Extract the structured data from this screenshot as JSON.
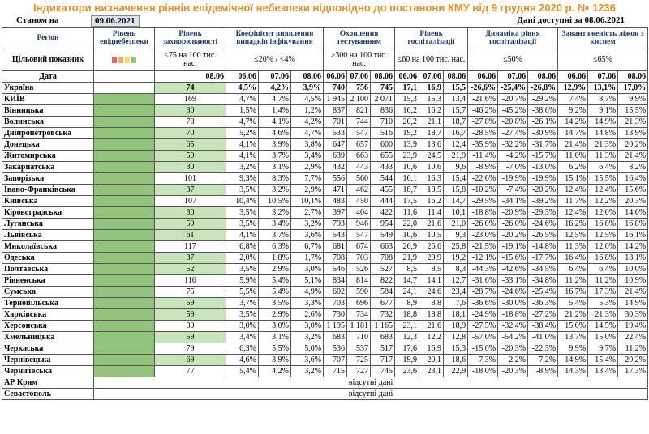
{
  "title": "Індикатори визначення рівнів епідемічної небезпеки відповідно до постанови КМУ від 9 грудня 2020 р. № 1236",
  "as_of_label": "Станом на",
  "as_of_date": "09.06.2021",
  "available": "Дані доступні за 08.06.2021",
  "table": {
    "headers": [
      "Регіон",
      "Рівень епіднебезпеки",
      "Рівень захворюваності",
      "Коефіцієнт виявлення випадків інфікування",
      "Охоплення тестуванням",
      "Рівень госпіталізації",
      "Динаміка рівня госпіталізації",
      "Завантаженість ліжок з киснем"
    ],
    "target_label": "Цільовий показник",
    "targets": [
      "<75 на 100 тис. нас.",
      "≤20% / <4%",
      "≥300 на 100 тис. нас.",
      "≤60 на 100 тис. нас.",
      "≤50%",
      "≤65%"
    ],
    "date_label": "Дата",
    "dates": [
      "08.06",
      "06.06",
      "07.06",
      "08.06",
      "06.06",
      "07.06",
      "08.06",
      "06.06",
      "07.06",
      "08.06",
      "06.06",
      "07.06",
      "08.06",
      "06.06",
      "07.06",
      "08.06"
    ],
    "rows": [
      {
        "region": "Україна",
        "values": [
          "74",
          "4,5%",
          "4,2%",
          "3,9%",
          "740",
          "756",
          "745",
          "17,1",
          "16,9",
          "15,5",
          "-26,6%",
          "-25,4%",
          "-26,8%",
          "12,9%",
          "13,1%",
          "17,0%"
        ]
      },
      {
        "region": "КИЇВ",
        "values": [
          "169",
          "4,7%",
          "4,7%",
          "4,5%",
          "1 945",
          "2 100",
          "2 071",
          "15,3",
          "15,3",
          "13,4",
          "-21,6%",
          "-20,7%",
          "-29,2%",
          "7,4%",
          "8,7%",
          "9,9%"
        ]
      },
      {
        "region": "Вінницька",
        "values": [
          "30",
          "1,5%",
          "1,4%",
          "1,2%",
          "837",
          "821",
          "836",
          "16,2",
          "16,2",
          "15,7",
          "-46,2%",
          "-45,2%",
          "-38,6%",
          "9,2%",
          "9,1%",
          "15,5%"
        ]
      },
      {
        "region": "Волинська",
        "values": [
          "78",
          "4,7%",
          "4,1%",
          "4,2%",
          "701",
          "744",
          "710",
          "20,2",
          "21,1",
          "18,7",
          "-27,8%",
          "-20,8%",
          "-26,1%",
          "14,2%",
          "14,9%",
          "21,3%"
        ]
      },
      {
        "region": "Дніпропетровська",
        "values": [
          "70",
          "5,2%",
          "4,6%",
          "4,7%",
          "533",
          "547",
          "516",
          "19,2",
          "18,7",
          "16,7",
          "-28,5%",
          "-27,4%",
          "-30,9%",
          "14,7%",
          "14,8%",
          "13,9%"
        ]
      },
      {
        "region": "Донецька",
        "values": [
          "65",
          "4,1%",
          "3,9%",
          "3,8%",
          "647",
          "657",
          "600",
          "13,9",
          "13,6",
          "12,4",
          "-35,9%",
          "-32,2%",
          "-31,7%",
          "21,4%",
          "21,3%",
          "20,2%"
        ]
      },
      {
        "region": "Житомирська",
        "values": [
          "59",
          "4,1%",
          "3,7%",
          "3,4%",
          "639",
          "663",
          "655",
          "23,9",
          "24,5",
          "21,9",
          "-11,4%",
          "-4,2%",
          "-15,7%",
          "11,0%",
          "11,3%",
          "21,4%"
        ]
      },
      {
        "region": "Закарпатська",
        "values": [
          "30",
          "3,2%",
          "3,1%",
          "2,9%",
          "432",
          "443",
          "433",
          "10,6",
          "10,6",
          "9,6",
          "-8,9%",
          "-7,0%",
          "-13,0%",
          "6,2%",
          "6,4%",
          "8,2%"
        ]
      },
      {
        "region": "Запорізька",
        "values": [
          "101",
          "9,3%",
          "8,3%",
          "7,7%",
          "556",
          "560",
          "544",
          "16,1",
          "16,3",
          "15,4",
          "-22,6%",
          "-19,9%",
          "-19,9%",
          "15,1%",
          "15,5%",
          "16,4%"
        ]
      },
      {
        "region": "Івано-Франківська",
        "values": [
          "37",
          "3,5%",
          "3,2%",
          "2,9%",
          "471",
          "462",
          "455",
          "18,7",
          "18,5",
          "15,8",
          "-10,2%",
          "-7,4%",
          "-20,2%",
          "12,4%",
          "12,4%",
          "15,6%"
        ]
      },
      {
        "region": "Київська",
        "values": [
          "107",
          "10,4%",
          "10,5%",
          "10,1%",
          "483",
          "450",
          "444",
          "17,5",
          "16,2",
          "14,7",
          "-29,5%",
          "-34,1%",
          "-39,2%",
          "11,7%",
          "12,2%",
          "20,3%"
        ]
      },
      {
        "region": "Кіровоградська",
        "values": [
          "30",
          "3,5%",
          "3,2%",
          "2,7%",
          "397",
          "404",
          "422",
          "11,6",
          "11,4",
          "10,1",
          "-18,8%",
          "-20,9%",
          "-29,3%",
          "12,4%",
          "12,0%",
          "14,6%"
        ]
      },
      {
        "region": "Луганська",
        "values": [
          "59",
          "3,5%",
          "3,4%",
          "3,2%",
          "793",
          "946",
          "954",
          "22,0",
          "21,6",
          "21,0",
          "-26,0%",
          "-26,0%",
          "-24,6%",
          "16,2%",
          "16,8%",
          "16,8%"
        ]
      },
      {
        "region": "Львівська",
        "values": [
          "61",
          "4,1%",
          "3,7%",
          "3,6%",
          "543",
          "547",
          "549",
          "10,6",
          "10,5",
          "9,3",
          "-23,0%",
          "-20,2%",
          "-26,5%",
          "12,5%",
          "12,5%",
          "16,1%"
        ]
      },
      {
        "region": "Миколаївська",
        "values": [
          "117",
          "6,8%",
          "6,3%",
          "6,7%",
          "681",
          "674",
          "663",
          "26,9",
          "26,6",
          "25,8",
          "-21,5%",
          "-19,1%",
          "-14,8%",
          "11,3%",
          "12,0%",
          "14,2%"
        ]
      },
      {
        "region": "Одеська",
        "values": [
          "37",
          "2,0%",
          "1,8%",
          "1,7%",
          "708",
          "703",
          "708",
          "21,9",
          "20,9",
          "19,2",
          "-12,1%",
          "-15,6%",
          "-17,7%",
          "16,4%",
          "16,8%",
          "18,1%"
        ]
      },
      {
        "region": "Полтавська",
        "values": [
          "52",
          "3,5%",
          "2,9%",
          "3,0%",
          "546",
          "526",
          "527",
          "8,5",
          "8,5",
          "8,3",
          "-44,3%",
          "-42,6%",
          "-34,5%",
          "6,4%",
          "6,4%",
          "10,0%"
        ]
      },
      {
        "region": "Рівненська",
        "values": [
          "116",
          "5,9%",
          "5,4%",
          "5,1%",
          "834",
          "814",
          "822",
          "14,7",
          "14,1",
          "12,7",
          "-31,6%",
          "-33,1%",
          "-34,8%",
          "11,2%",
          "11,2%",
          "10,9%"
        ]
      },
      {
        "region": "Сумська",
        "values": [
          "75",
          "5,5%",
          "5,4%",
          "4,9%",
          "602",
          "590",
          "584",
          "24,1",
          "24,6",
          "23,4",
          "-28,7%",
          "-24,6%",
          "-25,4%",
          "16,7%",
          "17,3%",
          "21,4%"
        ]
      },
      {
        "region": "Тернопільська",
        "values": [
          "59",
          "3,7%",
          "3,5%",
          "3,3%",
          "703",
          "696",
          "677",
          "8,9",
          "8,8",
          "7,6",
          "-36,6%",
          "-30,0%",
          "-36,3%",
          "5,4%",
          "5,3%",
          "14,9%"
        ]
      },
      {
        "region": "Харківська",
        "values": [
          "59",
          "3,5%",
          "2,9%",
          "2,6%",
          "730",
          "734",
          "732",
          "18,8",
          "18,8",
          "18,1",
          "-24,9%",
          "-18,8%",
          "-27,2%",
          "21,2%",
          "21,3%",
          "30,3%"
        ]
      },
      {
        "region": "Херсонська",
        "values": [
          "80",
          "3,0%",
          "3,0%",
          "3,0%",
          "1 195",
          "1 181",
          "1 165",
          "23,1",
          "21,6",
          "18,9",
          "-27,5%",
          "-32,4%",
          "-38,4%",
          "15,0%",
          "14,5%",
          "19,4%"
        ]
      },
      {
        "region": "Хмельницька",
        "values": [
          "59",
          "3,4%",
          "3,1%",
          "3,2%",
          "683",
          "710",
          "683",
          "12,3",
          "12,2",
          "12,8",
          "-57,0%",
          "-54,2%",
          "-41,0%",
          "13,7%",
          "15,0%",
          "22,4%"
        ]
      },
      {
        "region": "Черкаська",
        "values": [
          "79",
          "6,3%",
          "5,5%",
          "5,0%",
          "536",
          "537",
          "517",
          "17,6",
          "16,9",
          "15,3",
          "-15,0%",
          "-20,3%",
          "-22,3%",
          "9,9%",
          "9,7%",
          "11,2%"
        ]
      },
      {
        "region": "Чернівецька",
        "values": [
          "69",
          "4,6%",
          "3,9%",
          "3,6%",
          "707",
          "725",
          "717",
          "19,9",
          "20,1",
          "18,6",
          "-7,3%",
          "-2,2%",
          "-7,2%",
          "14,9%",
          "15,4%",
          "20,2%"
        ]
      },
      {
        "region": "Чернігівська",
        "values": [
          "77",
          "5,4%",
          "4,2%",
          "3,2%",
          "715",
          "727",
          "745",
          "23,6",
          "23,1",
          "22,9",
          "-18,0%",
          "-20,3%",
          "-8,9%",
          "14,3%",
          "13,4%",
          "17,3%"
        ]
      },
      {
        "region": "АР Крим",
        "note": "відсутні дані"
      },
      {
        "region": "Севастополь",
        "note": "відсутні дані"
      }
    ]
  }
}
